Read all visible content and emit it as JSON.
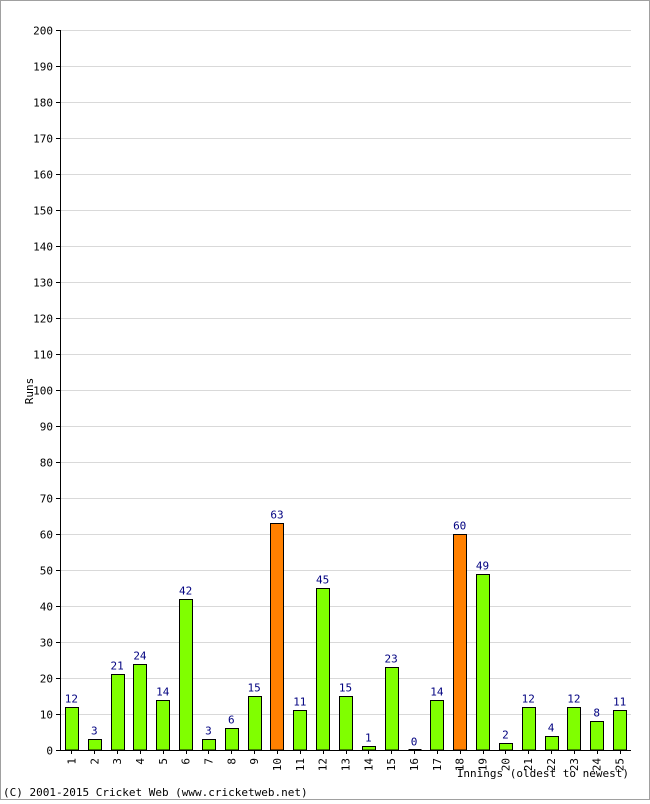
{
  "chart_data": {
    "type": "bar",
    "ylabel": "Runs",
    "xlabel": "Innings (oldest to newest)",
    "ylim": [
      0,
      200
    ],
    "yticks": [
      0,
      10,
      20,
      30,
      40,
      50,
      60,
      70,
      80,
      90,
      100,
      110,
      120,
      130,
      140,
      150,
      160,
      170,
      180,
      190,
      200
    ],
    "grid": true,
    "categories": [
      "1",
      "2",
      "3",
      "4",
      "5",
      "6",
      "7",
      "8",
      "9",
      "10",
      "11",
      "12",
      "13",
      "14",
      "15",
      "16",
      "17",
      "18",
      "19",
      "20",
      "21",
      "22",
      "23",
      "24",
      "25"
    ],
    "values": [
      12,
      3,
      21,
      24,
      14,
      42,
      3,
      6,
      15,
      63,
      11,
      45,
      15,
      1,
      23,
      0,
      14,
      60,
      49,
      2,
      12,
      4,
      12,
      8,
      11
    ],
    "highlighted_indices": [
      9,
      17
    ],
    "colors": {
      "bar": "#80ff00",
      "highlight": "#ff8000",
      "bar_stroke": "#000000",
      "value_label": "#000080",
      "grid": "#d9d9d9"
    }
  },
  "footer": {
    "copyright": "(C) 2001-2015 Cricket Web (www.cricketweb.net)"
  }
}
